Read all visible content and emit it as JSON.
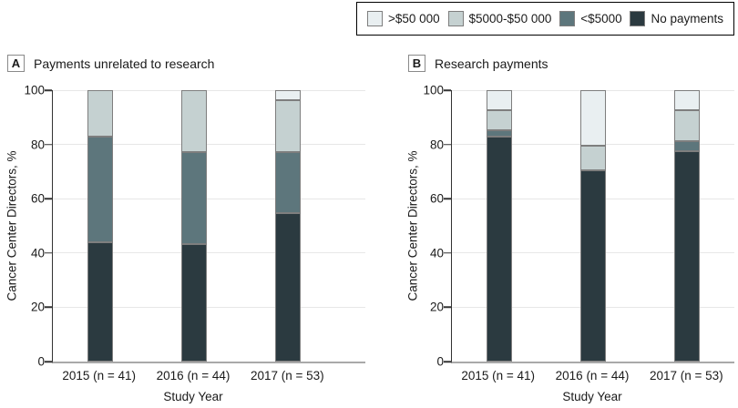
{
  "legend": {
    "items": [
      {
        "label": ">$50 000",
        "color": "#e9eff1"
      },
      {
        "label": "$5000-$50 000",
        "color": "#c5d1d1"
      },
      {
        "label": "<$5000",
        "color": "#5d767c"
      },
      {
        "label": "No payments",
        "color": "#2b3a40"
      }
    ]
  },
  "colors": {
    "gt_50000": "#e9eff1",
    "mid_5000_50000": "#c5d1d1",
    "lt_5000": "#5d767c",
    "no_payments": "#2b3a40",
    "axis": "#333333",
    "baseline": "#a9a9a9",
    "gridline": "#e7e7e7"
  },
  "chart_data": [
    {
      "type": "bar",
      "stacked": true,
      "panel_key": "A",
      "title": "Payments unrelated to research",
      "categories": [
        "2015 (n = 41)",
        "2016 (n = 44)",
        "2017 (n = 53)"
      ],
      "series": [
        {
          "name": "No payments",
          "color": "#2b3a40",
          "values": [
            43.9,
            43.2,
            54.7
          ]
        },
        {
          "name": "<$5000",
          "color": "#5d767c",
          "values": [
            39.0,
            34.1,
            22.6
          ]
        },
        {
          "name": "$5000-$50 000",
          "color": "#c5d1d1",
          "values": [
            17.1,
            22.7,
            18.9
          ]
        },
        {
          "name": ">$50 000",
          "color": "#e9eff1",
          "values": [
            0,
            0,
            3.8
          ]
        }
      ],
      "xlabel": "Study Year",
      "ylabel": "Cancer Center Directors, %",
      "ylim": [
        0,
        100
      ],
      "yticks": [
        0,
        20,
        40,
        60,
        80,
        100
      ],
      "grid": true,
      "legend_position": "top-right"
    },
    {
      "type": "bar",
      "stacked": true,
      "panel_key": "B",
      "title": "Research payments",
      "categories": [
        "2015 (n = 41)",
        "2016 (n = 44)",
        "2017 (n = 53)"
      ],
      "series": [
        {
          "name": "No payments",
          "color": "#2b3a40",
          "values": [
            82.9,
            70.5,
            77.4
          ]
        },
        {
          "name": "<$5000",
          "color": "#5d767c",
          "values": [
            2.4,
            0,
            3.8
          ]
        },
        {
          "name": "$5000-$50 000",
          "color": "#c5d1d1",
          "values": [
            7.3,
            9.1,
            11.3
          ]
        },
        {
          "name": ">$50 000",
          "color": "#e9eff1",
          "values": [
            7.3,
            20.5,
            7.5
          ]
        }
      ],
      "xlabel": "Study Year",
      "ylabel": "Cancer Center Directors, %",
      "ylim": [
        0,
        100
      ],
      "yticks": [
        0,
        20,
        40,
        60,
        80,
        100
      ],
      "grid": true,
      "legend_position": "top-right"
    }
  ]
}
